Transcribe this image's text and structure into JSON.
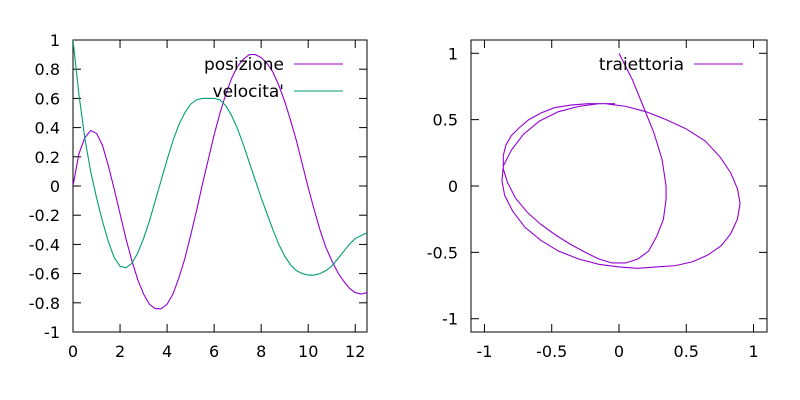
{
  "chart_data": [
    {
      "type": "line",
      "title": "",
      "xlabel": "",
      "ylabel": "",
      "xlim": [
        0,
        12.5
      ],
      "ylim": [
        -1,
        1
      ],
      "x_ticks": [
        0,
        2,
        4,
        6,
        8,
        10,
        12
      ],
      "y_ticks": [
        1,
        0.8,
        0.6,
        0.4,
        0.2,
        0,
        -0.2,
        -0.4,
        -0.6,
        -0.8,
        -1
      ],
      "x_tick_labels": [
        "0",
        "2",
        "4",
        "6",
        "8",
        "10",
        "12"
      ],
      "y_tick_labels": [
        "1",
        "0.8",
        "0.6",
        "0.4",
        "0.2",
        "0",
        "-0.2",
        "-0.4",
        "-0.6",
        "-0.8",
        "-1"
      ],
      "legend_position": "top-right",
      "grid": false,
      "series": [
        {
          "name": "posizione",
          "color": "#9400d3",
          "x": [
            0,
            0.25,
            0.5,
            0.75,
            1,
            1.25,
            1.5,
            1.75,
            2,
            2.25,
            2.5,
            2.75,
            3,
            3.25,
            3.5,
            3.75,
            4,
            4.25,
            4.5,
            4.75,
            5,
            5.25,
            5.5,
            5.75,
            6,
            6.25,
            6.5,
            6.75,
            7,
            7.25,
            7.5,
            7.75,
            8,
            8.25,
            8.5,
            8.75,
            9,
            9.25,
            9.5,
            9.75,
            10,
            10.25,
            10.5,
            10.75,
            11,
            11.25,
            11.5,
            11.75,
            12,
            12.25,
            12.5
          ],
          "y": [
            0,
            0.22,
            0.33,
            0.38,
            0.36,
            0.28,
            0.14,
            -0.02,
            -0.19,
            -0.36,
            -0.51,
            -0.64,
            -0.74,
            -0.81,
            -0.84,
            -0.84,
            -0.81,
            -0.74,
            -0.63,
            -0.5,
            -0.34,
            -0.17,
            0.01,
            0.18,
            0.35,
            0.5,
            0.63,
            0.74,
            0.82,
            0.87,
            0.9,
            0.9,
            0.88,
            0.84,
            0.78,
            0.69,
            0.58,
            0.45,
            0.31,
            0.15,
            -0.01,
            -0.16,
            -0.3,
            -0.42,
            -0.51,
            -0.59,
            -0.65,
            -0.7,
            -0.73,
            -0.74,
            -0.73
          ]
        },
        {
          "name": "velocita'",
          "color": "#009e73",
          "x": [
            0,
            0.25,
            0.5,
            0.75,
            1,
            1.25,
            1.5,
            1.75,
            2,
            2.25,
            2.5,
            2.75,
            3,
            3.25,
            3.5,
            3.75,
            4,
            4.25,
            4.5,
            4.75,
            5,
            5.25,
            5.5,
            5.75,
            6,
            6.25,
            6.5,
            6.75,
            7,
            7.25,
            7.5,
            7.75,
            8,
            8.25,
            8.5,
            8.75,
            9,
            9.25,
            9.5,
            9.75,
            10,
            10.25,
            10.5,
            10.75,
            11,
            11.25,
            11.5,
            11.75,
            12,
            12.25,
            12.5
          ],
          "y": [
            1,
            0.63,
            0.33,
            0.1,
            -0.08,
            -0.24,
            -0.38,
            -0.49,
            -0.55,
            -0.56,
            -0.53,
            -0.46,
            -0.36,
            -0.24,
            -0.1,
            0.04,
            0.18,
            0.31,
            0.42,
            0.5,
            0.56,
            0.59,
            0.6,
            0.6,
            0.6,
            0.59,
            0.55,
            0.48,
            0.39,
            0.28,
            0.16,
            0.04,
            -0.08,
            -0.19,
            -0.3,
            -0.4,
            -0.48,
            -0.54,
            -0.58,
            -0.6,
            -0.61,
            -0.61,
            -0.6,
            -0.58,
            -0.55,
            -0.5,
            -0.45,
            -0.4,
            -0.36,
            -0.34,
            -0.32
          ]
        }
      ]
    },
    {
      "type": "line",
      "title": "",
      "xlabel": "",
      "ylabel": "",
      "xlim": [
        -1.1,
        1.1
      ],
      "ylim": [
        -1.1,
        1.1
      ],
      "x_ticks": [
        -1,
        -0.5,
        0,
        0.5,
        1
      ],
      "y_ticks": [
        1,
        0.5,
        0,
        -0.5,
        -1
      ],
      "x_tick_labels": [
        "-1",
        "-0.5",
        "0",
        "0.5",
        "1"
      ],
      "y_tick_labels": [
        "1",
        "0.5",
        "0",
        "-0.5",
        "-1"
      ],
      "legend_position": "top-right",
      "grid": false,
      "series": [
        {
          "name": "traiettoria",
          "color": "#9400d3",
          "x": [
            0,
            0.1,
            0.18,
            0.26,
            0.32,
            0.35,
            0.35,
            0.33,
            0.28,
            0.22,
            0.14,
            0.05,
            -0.05,
            -0.15,
            -0.25,
            -0.36,
            -0.47,
            -0.58,
            -0.68,
            -0.77,
            -0.83,
            -0.86,
            -0.86,
            -0.84,
            -0.8,
            -0.74,
            -0.67,
            -0.58,
            -0.48,
            -0.36,
            -0.23,
            -0.1,
            0.05,
            0.2,
            0.35,
            0.5,
            0.64,
            0.75,
            0.83,
            0.88,
            0.9,
            0.88,
            0.83,
            0.76,
            0.66,
            0.55,
            0.42,
            0.28,
            0.14,
            0,
            -0.15,
            -0.3,
            -0.45,
            -0.58,
            -0.7,
            -0.79,
            -0.85,
            -0.87,
            -0.86,
            -0.8,
            -0.71,
            -0.59,
            -0.45,
            -0.3,
            -0.15,
            -0.03
          ],
          "y": [
            1,
            0.8,
            0.6,
            0.4,
            0.2,
            0,
            -0.1,
            -0.25,
            -0.38,
            -0.49,
            -0.55,
            -0.58,
            -0.58,
            -0.55,
            -0.5,
            -0.44,
            -0.37,
            -0.29,
            -0.2,
            -0.09,
            0.03,
            0.13,
            0.23,
            0.31,
            0.38,
            0.44,
            0.5,
            0.55,
            0.59,
            0.61,
            0.62,
            0.62,
            0.6,
            0.56,
            0.5,
            0.43,
            0.34,
            0.22,
            0.1,
            -0.02,
            -0.13,
            -0.25,
            -0.36,
            -0.45,
            -0.52,
            -0.57,
            -0.6,
            -0.61,
            -0.62,
            -0.61,
            -0.59,
            -0.55,
            -0.49,
            -0.41,
            -0.31,
            -0.19,
            -0.07,
            0.04,
            0.15,
            0.27,
            0.39,
            0.49,
            0.56,
            0.6,
            0.62,
            0.62
          ]
        }
      ]
    }
  ]
}
